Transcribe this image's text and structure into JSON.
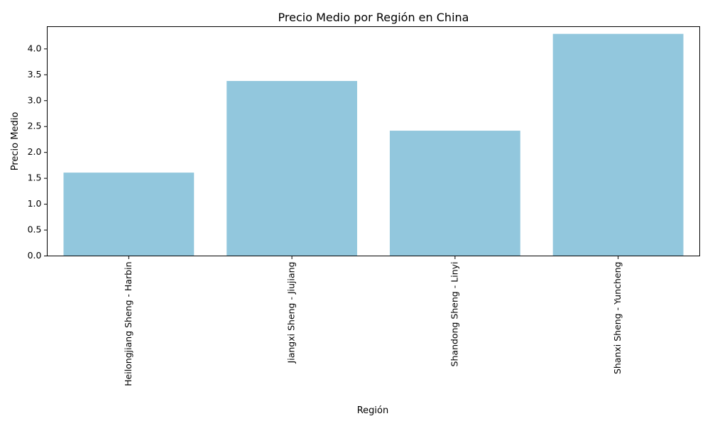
{
  "chart_data": {
    "type": "bar",
    "title": "Precio Medio por Región en China",
    "xlabel": "Región",
    "ylabel": "Precio Medio",
    "categories": [
      "Heilongjiang Sheng - Harbin",
      "Jiangxi Sheng - Jiujiang",
      "Shandong Sheng - Linyi",
      "Shanxi Sheng - Yuncheng"
    ],
    "values": [
      1.61,
      3.38,
      2.42,
      4.29
    ],
    "ylim": [
      0,
      4.43
    ],
    "yticks": [
      0.0,
      0.5,
      1.0,
      1.5,
      2.0,
      2.5,
      3.0,
      3.5,
      4.0
    ],
    "ytick_labels": [
      "0.0",
      "0.5",
      "1.0",
      "1.5",
      "2.0",
      "2.5",
      "3.0",
      "3.5",
      "4.0"
    ],
    "bar_color": "#92c7dd",
    "grid": false,
    "legend": "none",
    "xtick_rotation": "vertical"
  }
}
